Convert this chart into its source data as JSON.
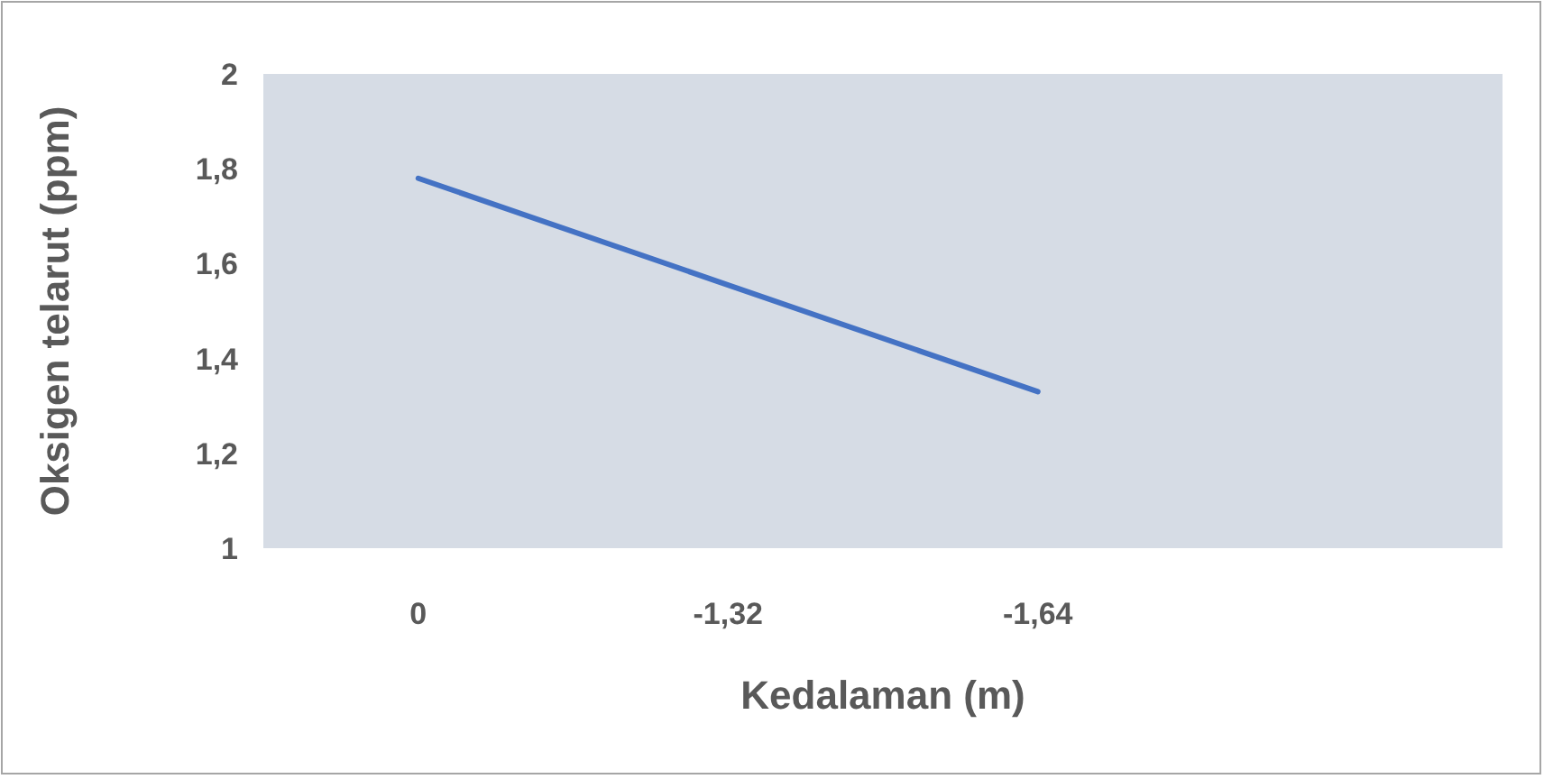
{
  "chart_data": {
    "type": "line",
    "xlabel": "Kedalaman (m)",
    "ylabel": "Oksigen telarut (ppm)",
    "categories": [
      "0",
      "-1,32",
      "-1,64",
      null
    ],
    "series": [
      {
        "color": "#4472c4",
        "values": [
          1.78,
          1.555,
          1.33,
          null
        ]
      }
    ],
    "ylim": [
      1,
      2
    ],
    "yticks": [
      1,
      {
        "value": 1.2,
        "label": "1,2"
      },
      {
        "value": 1.4,
        "label": "1,4"
      },
      {
        "value": 1.6,
        "label": "1,6"
      },
      {
        "value": 1.8,
        "label": "1,8"
      },
      2
    ],
    "line_style": "solid"
  }
}
